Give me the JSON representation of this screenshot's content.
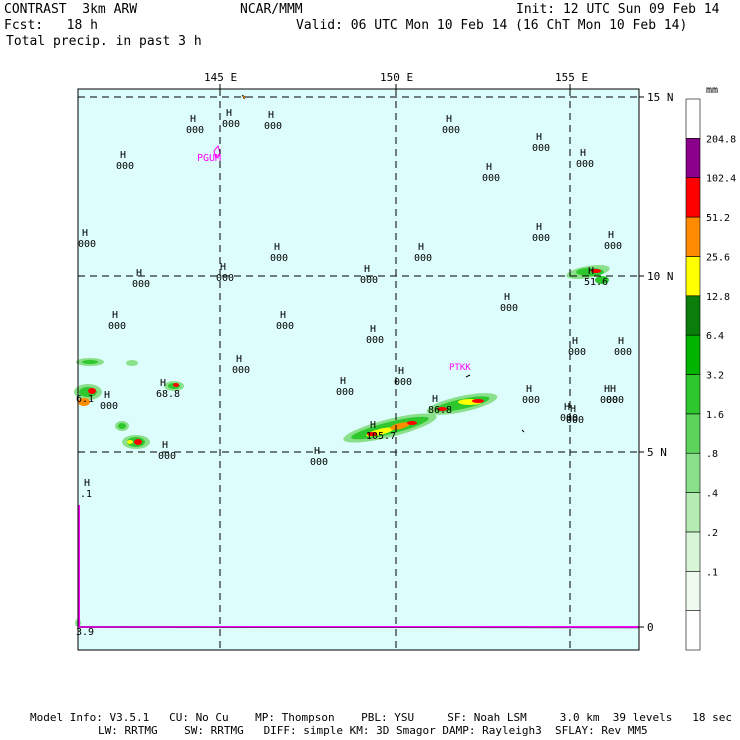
{
  "header": {
    "model": "CONTRAST  3km ARW",
    "center": "NCAR/MMM",
    "init": "Init: 12 UTC Sun 09 Feb 14",
    "fcst": "Fcst:   18 h",
    "valid": "Valid: 06 UTC Mon 10 Feb 14 (16 ChT Mon 10 Feb 14)",
    "field": "Total precip. in past 3 h"
  },
  "map": {
    "lon_labels": [
      "145 E",
      "150 E",
      "155 E"
    ],
    "lat_labels": [
      "15 N",
      "10 N",
      "5 N",
      "0"
    ],
    "background_color": "#dcfdfb",
    "stations": [
      {
        "id": "PGUM",
        "color": "#ff00ff"
      },
      {
        "id": "PTKK",
        "color": "#ff00ff"
      }
    ],
    "highs": [
      {
        "mark": "H",
        "value": "000"
      },
      {
        "mark": "H",
        "value": "000"
      },
      {
        "mark": "H",
        "value": "000"
      },
      {
        "mark": "H",
        "value": "000"
      },
      {
        "mark": "H",
        "value": "000"
      },
      {
        "mark": "H",
        "value": "000"
      },
      {
        "mark": "H",
        "value": "000"
      },
      {
        "mark": "H",
        "value": "000"
      },
      {
        "mark": "H",
        "value": "000"
      },
      {
        "mark": "H",
        "value": "000"
      },
      {
        "mark": "H",
        "value": "000"
      },
      {
        "mark": "H",
        "value": "000"
      },
      {
        "mark": "H",
        "value": "000"
      },
      {
        "mark": "H",
        "value": "000"
      },
      {
        "mark": "H",
        "value": "000"
      },
      {
        "mark": "H",
        "value": "000"
      },
      {
        "mark": "H",
        "value": "000"
      },
      {
        "mark": "H",
        "value": "000"
      },
      {
        "mark": "H",
        "value": "000"
      },
      {
        "mark": "H",
        "value": "000"
      },
      {
        "mark": "H",
        "value": "000"
      },
      {
        "mark": "H",
        "value": "000"
      },
      {
        "mark": "H",
        "value": "000"
      },
      {
        "mark": "H",
        "value": "000"
      },
      {
        "mark": "H",
        "value": "000"
      },
      {
        "mark": "H",
        "value": "000"
      },
      {
        "mark": "H",
        "value": "000"
      },
      {
        "mark": "H",
        "value": "000"
      },
      {
        "mark": "H",
        "value": "000"
      },
      {
        "mark": "H",
        "value": "000"
      },
      {
        "mark": "H",
        "value": "000"
      },
      {
        "mark": "H",
        "value": "000"
      },
      {
        "mark": "H",
        "value": "000"
      },
      {
        "mark": "H",
        "value": "68.8"
      },
      {
        "mark": "H",
        "value": "105.7"
      },
      {
        "mark": "H",
        "value": "86.8"
      },
      {
        "mark": "H",
        "value": "51.6"
      },
      {
        "mark": "H",
        "value": ".1"
      }
    ],
    "edge_labels": [
      "6.1",
      "3.9"
    ]
  },
  "colorbar": {
    "unit": "mm",
    "ticks": [
      "204.8",
      "102.4",
      "51.2",
      "25.6",
      "12.8",
      "6.4",
      "3.2",
      "1.6",
      ".8",
      ".4",
      ".2",
      ".1"
    ],
    "colors": [
      "#ffffff",
      "#f0fbf0",
      "#d8f5d8",
      "#b4ecb4",
      "#8ae08a",
      "#5cd45c",
      "#2ec82e",
      "#00b400",
      "#0a7d0a",
      "#ffff00",
      "#ff8c00",
      "#ff0000",
      "#8b008b",
      "#ffffff"
    ]
  },
  "footer": {
    "line1": "Model Info: V3.5.1   CU: No Cu    MP: Thompson    PBL: YSU     SF: Noah LSM     3.0 km  39 levels   18 sec",
    "line2": "LW: RRTMG    SW: RRTMG   DIFF: simple KM: 3D Smagor DAMP: Rayleigh3  SFLAY: Rev MM5"
  }
}
